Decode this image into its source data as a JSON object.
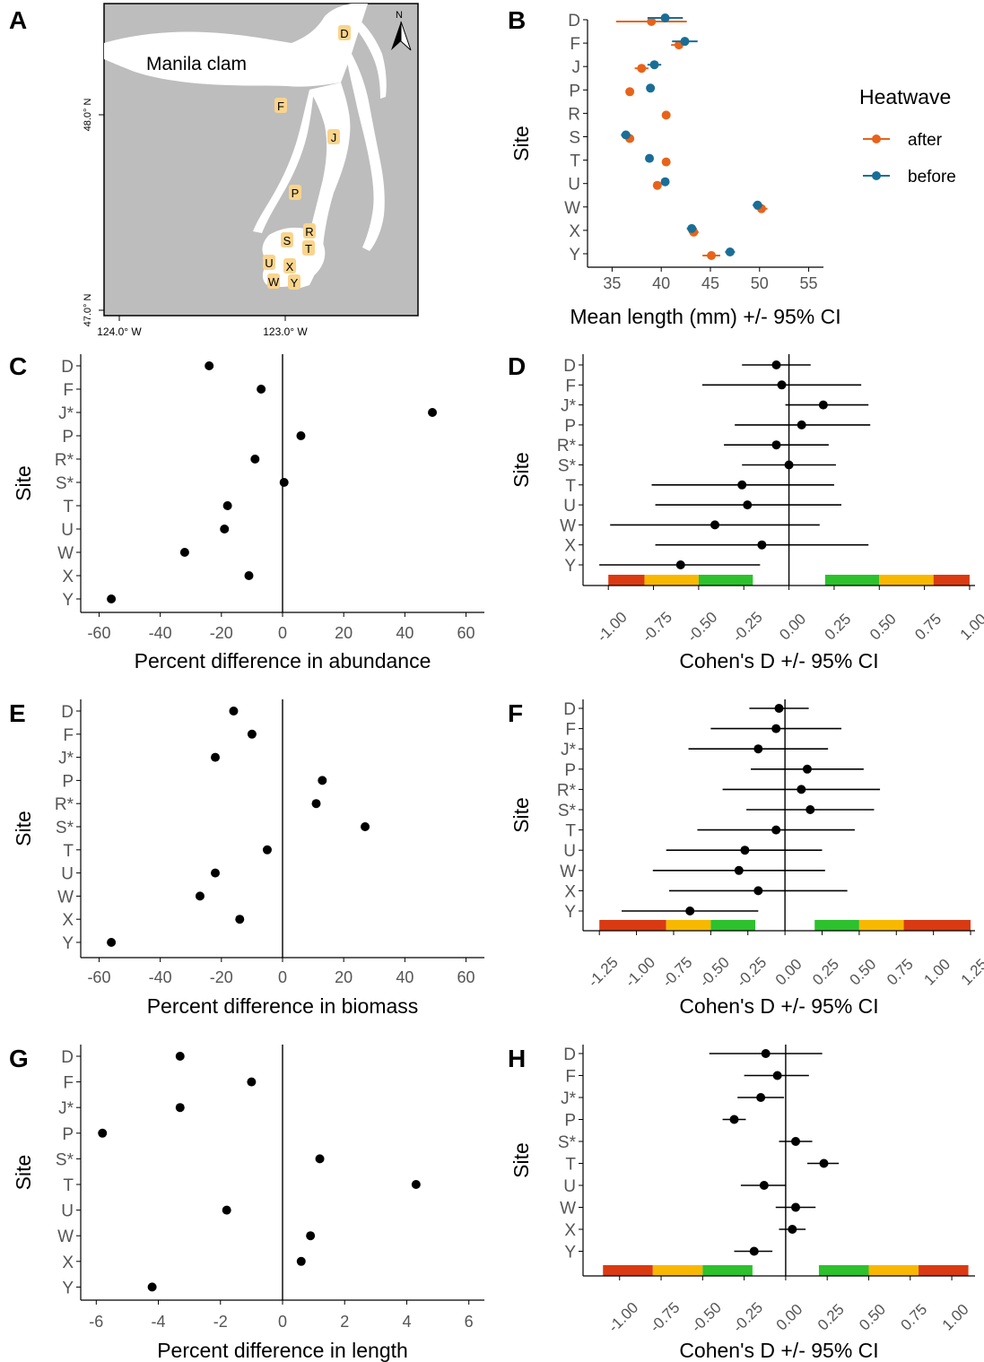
{
  "colors": {
    "after": "#E8631A",
    "before": "#1A6E96",
    "land": "#BDBDBD",
    "water": "#FFFFFF",
    "site_fill": "#F9D48C",
    "neg_green": "#2DC12D",
    "neg_yellow": "#F9B800",
    "neg_red": "#D93A12"
  },
  "panels": {
    "A": {
      "letter": "A",
      "map_label": "Manila clam",
      "north_label": "N",
      "lat_ticks": [
        "48.0° N",
        "47.0° N"
      ],
      "lon_ticks": [
        "124.0° W",
        "123.0° W"
      ],
      "sites": [
        "D",
        "F",
        "J",
        "P",
        "R",
        "S",
        "T",
        "U",
        "X",
        "W",
        "Y"
      ]
    },
    "B": {
      "letter": "B"
    },
    "C": {
      "letter": "C"
    },
    "D": {
      "letter": "D"
    },
    "E": {
      "letter": "E"
    },
    "F": {
      "letter": "F"
    },
    "G": {
      "letter": "G"
    },
    "H": {
      "letter": "H"
    }
  },
  "chart_data": [
    {
      "panel": "B",
      "type": "scatter",
      "xlabel": "Mean length (mm) +/- 95% CI",
      "ylabel": "Site",
      "xlim": [
        32.5,
        56.5
      ],
      "xticks": [
        35,
        40,
        45,
        50,
        55
      ],
      "categories": [
        "D",
        "F",
        "J",
        "P",
        "R",
        "S",
        "T",
        "U",
        "W",
        "X",
        "Y"
      ],
      "legend_title": "Heatwave",
      "legend_position": "right",
      "series": [
        {
          "name": "after",
          "values": [
            39.0,
            41.8,
            38.0,
            36.8,
            40.5,
            36.8,
            40.5,
            39.6,
            50.2,
            43.3,
            45.1
          ],
          "lo": [
            35.4,
            41.0,
            37.3,
            36.5,
            40.2,
            36.4,
            40.2,
            39.3,
            49.6,
            42.8,
            44.2
          ],
          "hi": [
            42.6,
            42.6,
            38.7,
            37.1,
            40.8,
            37.2,
            40.8,
            39.9,
            50.8,
            43.8,
            46.0
          ]
        },
        {
          "name": "before",
          "values": [
            40.4,
            42.4,
            39.3,
            38.9,
            null,
            36.4,
            38.8,
            40.4,
            49.8,
            43.1,
            47.0
          ],
          "lo": [
            38.6,
            41.1,
            38.6,
            38.6,
            null,
            35.9,
            38.5,
            40.1,
            49.3,
            42.6,
            46.5
          ],
          "hi": [
            42.2,
            43.7,
            40.0,
            39.2,
            null,
            36.9,
            39.1,
            40.7,
            50.3,
            43.6,
            47.5
          ]
        }
      ]
    },
    {
      "panel": "C",
      "type": "scatter",
      "xlabel": "Percent difference in abundance",
      "ylabel": "Site",
      "xlim": [
        -66,
        66
      ],
      "xticks": [
        -60,
        -40,
        -20,
        0,
        20,
        40,
        60
      ],
      "categories": [
        "D",
        "F",
        "J*",
        "P",
        "R*",
        "S*",
        "T",
        "U",
        "W",
        "X",
        "Y"
      ],
      "values": [
        -24,
        -7,
        49,
        6,
        -9,
        0.5,
        -18,
        -19,
        -32,
        -11,
        -56
      ]
    },
    {
      "panel": "D",
      "type": "scatter",
      "xlabel": "Cohen's D +/- 95% CI",
      "ylabel": "Site",
      "xlim": [
        -1.14,
        1.03
      ],
      "xticks": [
        -1.0,
        -0.75,
        -0.5,
        -0.25,
        0.0,
        0.25,
        0.5,
        0.75,
        1.0
      ],
      "xtick_labels": [
        "-1.00",
        "-0.75",
        "-0.50",
        "-0.25",
        "0.00",
        "0.25",
        "0.50",
        "0.75",
        "1.00"
      ],
      "categories": [
        "D",
        "F",
        "J*",
        "P",
        "R*",
        "S*",
        "T",
        "U",
        "W",
        "X",
        "Y"
      ],
      "values": [
        -0.07,
        -0.04,
        0.19,
        0.07,
        -0.07,
        0.0,
        -0.26,
        -0.23,
        -0.41,
        -0.15,
        -0.6
      ],
      "lo": [
        -0.26,
        -0.48,
        -0.02,
        -0.3,
        -0.36,
        -0.26,
        -0.76,
        -0.74,
        -0.99,
        -0.74,
        -1.05
      ],
      "hi": [
        0.12,
        0.4,
        0.44,
        0.45,
        0.22,
        0.26,
        0.25,
        0.29,
        0.17,
        0.44,
        -0.16
      ],
      "effect_bands": [
        {
          "from": -1.0,
          "to": -0.8,
          "level": "large"
        },
        {
          "from": -0.8,
          "to": -0.5,
          "level": "medium"
        },
        {
          "from": -0.5,
          "to": -0.2,
          "level": "small"
        },
        {
          "from": 0.2,
          "to": 0.5,
          "level": "small"
        },
        {
          "from": 0.5,
          "to": 0.8,
          "level": "medium"
        },
        {
          "from": 0.8,
          "to": 1.0,
          "level": "large"
        }
      ]
    },
    {
      "panel": "E",
      "type": "scatter",
      "xlabel": "Percent difference in biomass",
      "ylabel": "Site",
      "xlim": [
        -66,
        66
      ],
      "xticks": [
        -60,
        -40,
        -20,
        0,
        20,
        40,
        60
      ],
      "categories": [
        "D",
        "F",
        "J*",
        "P",
        "R*",
        "S*",
        "T",
        "U",
        "W",
        "X",
        "Y"
      ],
      "values": [
        -16,
        -10,
        -22,
        13,
        11,
        27,
        -5,
        -22,
        -27,
        -14,
        -56
      ]
    },
    {
      "panel": "F",
      "type": "scatter",
      "xlabel": "Cohen's D +/- 95% CI",
      "ylabel": "Site",
      "xlim": [
        -1.36,
        1.28
      ],
      "xticks": [
        -1.25,
        -1.0,
        -0.75,
        -0.5,
        -0.25,
        0.0,
        0.25,
        0.5,
        0.75,
        1.0,
        1.25
      ],
      "xtick_labels": [
        "-1.25",
        "-1.00",
        "-0.75",
        "-0.50",
        "-0.25",
        "0.00",
        "0.25",
        "0.50",
        "0.75",
        "1.00",
        "1.25"
      ],
      "categories": [
        "D",
        "F",
        "J*",
        "P",
        "R*",
        "S*",
        "T",
        "U",
        "W",
        "X",
        "Y"
      ],
      "values": [
        -0.04,
        -0.06,
        -0.18,
        0.15,
        0.11,
        0.17,
        -0.06,
        -0.27,
        -0.31,
        -0.18,
        -0.64
      ],
      "lo": [
        -0.24,
        -0.5,
        -0.65,
        -0.23,
        -0.42,
        -0.26,
        -0.59,
        -0.8,
        -0.89,
        -0.78,
        -1.1
      ],
      "hi": [
        0.16,
        0.38,
        0.29,
        0.53,
        0.64,
        0.6,
        0.47,
        0.25,
        0.27,
        0.42,
        -0.18
      ],
      "effect_bands": [
        {
          "from": -1.25,
          "to": -0.8,
          "level": "large"
        },
        {
          "from": -0.8,
          "to": -0.5,
          "level": "medium"
        },
        {
          "from": -0.5,
          "to": -0.2,
          "level": "small"
        },
        {
          "from": 0.2,
          "to": 0.5,
          "level": "small"
        },
        {
          "from": 0.5,
          "to": 0.8,
          "level": "medium"
        },
        {
          "from": 0.8,
          "to": 1.25,
          "level": "large"
        }
      ]
    },
    {
      "panel": "G",
      "type": "scatter",
      "xlabel": "Percent difference in length",
      "ylabel": "Site",
      "xlim": [
        -6.5,
        6.5
      ],
      "xticks": [
        -6,
        -4,
        -2,
        0,
        2,
        4,
        6
      ],
      "categories": [
        "D",
        "F",
        "J*",
        "P",
        "S*",
        "T",
        "U",
        "W",
        "X",
        "Y"
      ],
      "values": [
        -3.3,
        -1.0,
        -3.3,
        -5.8,
        1.2,
        4.3,
        -1.8,
        0.9,
        0.6,
        -4.2
      ]
    },
    {
      "panel": "H",
      "type": "scatter",
      "xlabel": "Cohen's D +/- 95% CI",
      "ylabel": "Site",
      "xlim": [
        -1.22,
        1.14
      ],
      "xticks": [
        -1.0,
        -0.75,
        -0.5,
        -0.25,
        0.0,
        0.25,
        0.5,
        0.75,
        1.0
      ],
      "xtick_labels": [
        "-1.00",
        "-0.75",
        "-0.50",
        "-0.25",
        "0.00",
        "0.25",
        "0.50",
        "0.75",
        "1.00"
      ],
      "categories": [
        "D",
        "F",
        "J*",
        "P",
        "S*",
        "T",
        "U",
        "W",
        "X",
        "Y"
      ],
      "values": [
        -0.12,
        -0.05,
        -0.15,
        -0.31,
        0.06,
        0.23,
        -0.13,
        0.06,
        0.04,
        -0.19
      ],
      "lo": [
        -0.46,
        -0.25,
        -0.29,
        -0.38,
        -0.04,
        0.13,
        -0.27,
        -0.06,
        -0.04,
        -0.31
      ],
      "hi": [
        0.22,
        0.14,
        -0.01,
        -0.24,
        0.16,
        0.32,
        0.0,
        0.18,
        0.12,
        -0.08
      ],
      "effect_bands": [
        {
          "from": -1.1,
          "to": -0.8,
          "level": "large"
        },
        {
          "from": -0.8,
          "to": -0.5,
          "level": "medium"
        },
        {
          "from": -0.5,
          "to": -0.2,
          "level": "small"
        },
        {
          "from": 0.2,
          "to": 0.5,
          "level": "small"
        },
        {
          "from": 0.5,
          "to": 0.8,
          "level": "medium"
        },
        {
          "from": 0.8,
          "to": 1.1,
          "level": "large"
        }
      ]
    }
  ]
}
